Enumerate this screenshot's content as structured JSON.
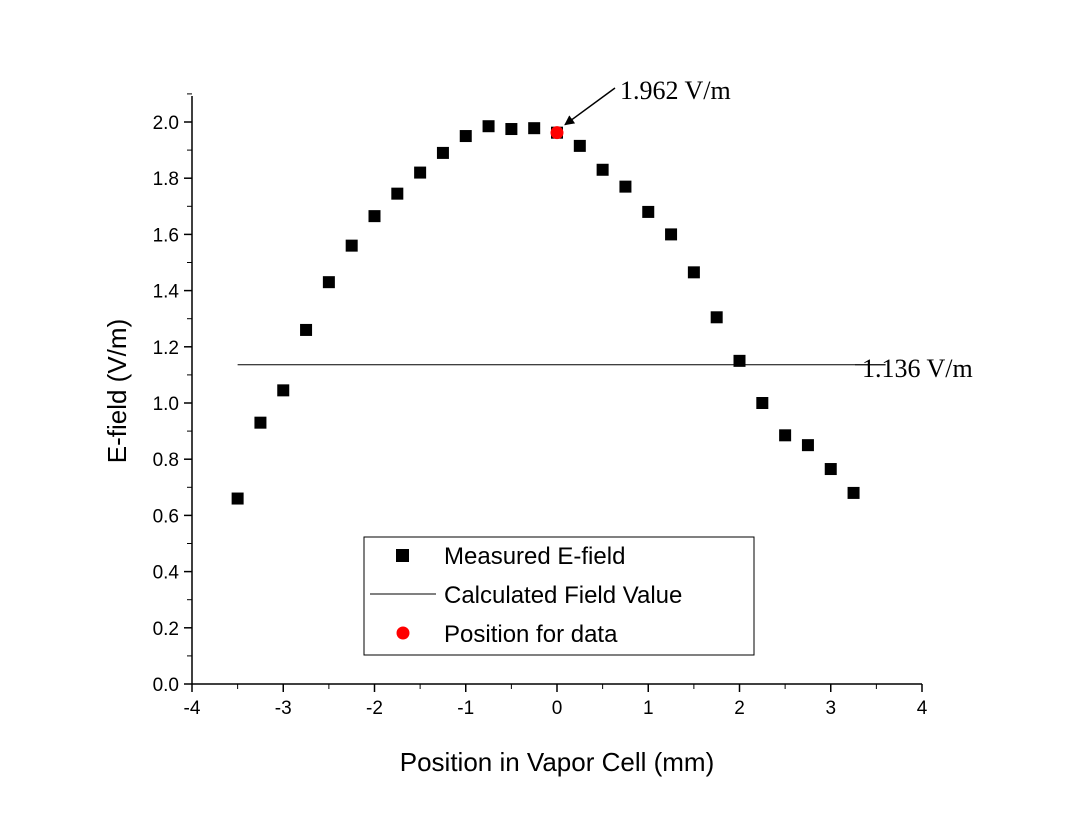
{
  "chart_data": {
    "type": "scatter",
    "title": "",
    "xlabel": "Position in Vapor Cell (mm)",
    "ylabel": "E-field (V/m)",
    "xlim": [
      -4,
      4
    ],
    "ylim": [
      0.0,
      2.1
    ],
    "x_ticks": [
      "-4",
      "-3",
      "-2",
      "-1",
      "0",
      "1",
      "2",
      "3",
      "4"
    ],
    "y_ticks": [
      "0.0",
      "0.2",
      "0.4",
      "0.6",
      "0.8",
      "1.0",
      "1.2",
      "1.4",
      "1.6",
      "1.8",
      "2.0"
    ],
    "grid": false,
    "series": [
      {
        "name": "Measured E-field",
        "marker": "square",
        "color": "#000000",
        "x": [
          -3.5,
          -3.25,
          -3.0,
          -2.75,
          -2.5,
          -2.25,
          -2.0,
          -1.75,
          -1.5,
          -1.25,
          -1.0,
          -0.75,
          -0.5,
          -0.25,
          0.0,
          0.25,
          0.5,
          0.75,
          1.0,
          1.25,
          1.5,
          1.75,
          2.0,
          2.25,
          2.5,
          2.75,
          3.0,
          3.25
        ],
        "y": [
          0.66,
          0.93,
          1.045,
          1.26,
          1.43,
          1.56,
          1.665,
          1.745,
          1.82,
          1.89,
          1.95,
          1.985,
          1.975,
          1.978,
          1.962,
          1.915,
          1.83,
          1.77,
          1.68,
          1.6,
          1.465,
          1.305,
          1.15,
          1.0,
          0.885,
          0.85,
          0.765,
          0.68
        ]
      },
      {
        "name": "Calculated Field Value",
        "type": "hline",
        "color": "#000000",
        "y": 1.136,
        "x_range": [
          -3.5,
          3.25
        ]
      },
      {
        "name": "Position for data",
        "marker": "circle",
        "color": "#ff0000",
        "x": [
          0.0
        ],
        "y": [
          1.962
        ]
      }
    ],
    "annotations": [
      {
        "text": "1.962 V/m",
        "points_to_x": 0.0,
        "points_to_y": 1.962
      },
      {
        "text": "1.136 V/m",
        "refers_to": "Calculated Field Value"
      }
    ],
    "legend": {
      "position": "bottom-center",
      "entries": [
        "Measured E-field",
        "Calculated Field Value",
        "Position for data"
      ]
    }
  }
}
